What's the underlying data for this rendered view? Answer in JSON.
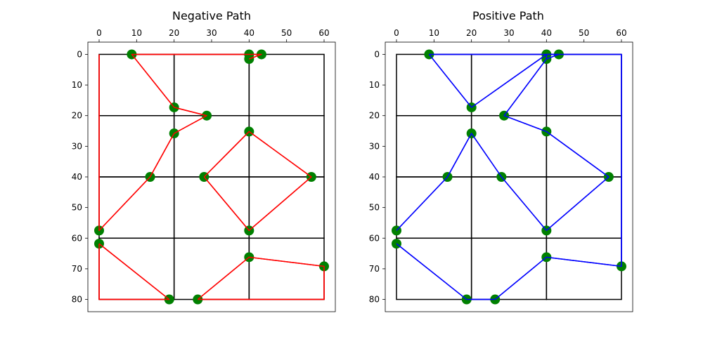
{
  "chart_data": [
    {
      "type": "line",
      "title": "Negative Path",
      "xlabel": "",
      "ylabel": "",
      "xlim": [
        -3,
        63
      ],
      "ylim": [
        84,
        -4
      ],
      "y_inverted": true,
      "x_axis_position": "top",
      "xticks": [
        0,
        10,
        20,
        30,
        40,
        50,
        60
      ],
      "yticks": [
        0,
        10,
        20,
        30,
        40,
        50,
        60,
        70,
        80
      ],
      "path_color": "#ff0000",
      "marker_color": "#008000",
      "grid_color": "#000000",
      "grid_rects": [
        {
          "x0": 0,
          "y0": 0,
          "x1": 20,
          "y1": 20
        },
        {
          "x0": 20,
          "y0": 0,
          "x1": 40,
          "y1": 20
        },
        {
          "x0": 40,
          "y0": 0,
          "x1": 60,
          "y1": 20
        },
        {
          "x0": 0,
          "y0": 20,
          "x1": 20,
          "y1": 40
        },
        {
          "x0": 20,
          "y0": 20,
          "x1": 40,
          "y1": 40
        },
        {
          "x0": 40,
          "y0": 20,
          "x1": 60,
          "y1": 40
        },
        {
          "x0": 0,
          "y0": 40,
          "x1": 20,
          "y1": 60
        },
        {
          "x0": 20,
          "y0": 40,
          "x1": 40,
          "y1": 60
        },
        {
          "x0": 40,
          "y0": 40,
          "x1": 60,
          "y1": 60
        },
        {
          "x0": 0,
          "y0": 60,
          "x1": 20,
          "y1": 80
        },
        {
          "x0": 20,
          "y0": 60,
          "x1": 40,
          "y1": 80
        },
        {
          "x0": 40,
          "y0": 60,
          "x1": 60,
          "y1": 80
        }
      ],
      "points": [
        {
          "x": 8.7,
          "y": 0
        },
        {
          "x": 40,
          "y": 0
        },
        {
          "x": 43.3,
          "y": 0
        },
        {
          "x": 40,
          "y": 1.5
        },
        {
          "x": 20,
          "y": 17.3
        },
        {
          "x": 28.7,
          "y": 20
        },
        {
          "x": 20,
          "y": 25.8
        },
        {
          "x": 40,
          "y": 25.2
        },
        {
          "x": 13.6,
          "y": 40
        },
        {
          "x": 28,
          "y": 40
        },
        {
          "x": 56.6,
          "y": 40
        },
        {
          "x": 0,
          "y": 57.5
        },
        {
          "x": 40,
          "y": 57.5
        },
        {
          "x": 0,
          "y": 61.8
        },
        {
          "x": 40,
          "y": 66.2
        },
        {
          "x": 60,
          "y": 69.2
        },
        {
          "x": 18.7,
          "y": 80
        },
        {
          "x": 26.3,
          "y": 80
        }
      ],
      "path": [
        {
          "x": 40,
          "y": 0
        },
        {
          "x": 8.7,
          "y": 0
        },
        {
          "x": 20,
          "y": 17.3
        },
        {
          "x": 28.7,
          "y": 20
        },
        {
          "x": 20,
          "y": 25.8
        },
        {
          "x": 13.6,
          "y": 40
        },
        {
          "x": 0,
          "y": 57.5
        },
        {
          "x": 0,
          "y": 0
        }
      ],
      "path2": [
        {
          "x": 0,
          "y": 61.8
        },
        {
          "x": 0,
          "y": 80
        },
        {
          "x": 18.7,
          "y": 80
        },
        {
          "x": 0,
          "y": 61.8
        }
      ],
      "path3": [
        {
          "x": 26.3,
          "y": 80
        },
        {
          "x": 60,
          "y": 80
        },
        {
          "x": 60,
          "y": 69.2
        },
        {
          "x": 40,
          "y": 66.2
        },
        {
          "x": 26.3,
          "y": 80
        }
      ],
      "path4": [
        {
          "x": 28,
          "y": 40
        },
        {
          "x": 40,
          "y": 25.2
        },
        {
          "x": 56.6,
          "y": 40
        },
        {
          "x": 40,
          "y": 57.5
        },
        {
          "x": 28,
          "y": 40
        }
      ],
      "path5": [
        {
          "x": 40,
          "y": 1.5
        },
        {
          "x": 43.3,
          "y": 0
        },
        {
          "x": 40,
          "y": 0
        }
      ]
    },
    {
      "type": "line",
      "title": "Positive Path",
      "xlabel": "",
      "ylabel": "",
      "xlim": [
        -3,
        63
      ],
      "ylim": [
        84,
        -4
      ],
      "y_inverted": true,
      "x_axis_position": "top",
      "xticks": [
        0,
        10,
        20,
        30,
        40,
        50,
        60
      ],
      "yticks": [
        0,
        10,
        20,
        30,
        40,
        50,
        60,
        70,
        80
      ],
      "path_color": "#0000ff",
      "marker_color": "#008000",
      "grid_color": "#000000",
      "grid_rects": [
        {
          "x0": 0,
          "y0": 0,
          "x1": 20,
          "y1": 20
        },
        {
          "x0": 20,
          "y0": 0,
          "x1": 40,
          "y1": 20
        },
        {
          "x0": 40,
          "y0": 0,
          "x1": 60,
          "y1": 20
        },
        {
          "x0": 0,
          "y0": 20,
          "x1": 20,
          "y1": 40
        },
        {
          "x0": 20,
          "y0": 20,
          "x1": 40,
          "y1": 40
        },
        {
          "x0": 40,
          "y0": 20,
          "x1": 60,
          "y1": 40
        },
        {
          "x0": 0,
          "y0": 40,
          "x1": 20,
          "y1": 60
        },
        {
          "x0": 20,
          "y0": 40,
          "x1": 40,
          "y1": 60
        },
        {
          "x0": 40,
          "y0": 40,
          "x1": 60,
          "y1": 60
        },
        {
          "x0": 0,
          "y0": 60,
          "x1": 20,
          "y1": 80
        },
        {
          "x0": 20,
          "y0": 60,
          "x1": 40,
          "y1": 80
        },
        {
          "x0": 40,
          "y0": 60,
          "x1": 60,
          "y1": 80
        }
      ],
      "points": [
        {
          "x": 8.7,
          "y": 0
        },
        {
          "x": 40,
          "y": 0
        },
        {
          "x": 43.3,
          "y": 0
        },
        {
          "x": 40,
          "y": 1.5
        },
        {
          "x": 20,
          "y": 17.3
        },
        {
          "x": 28.7,
          "y": 20
        },
        {
          "x": 20,
          "y": 25.8
        },
        {
          "x": 40,
          "y": 25.2
        },
        {
          "x": 13.6,
          "y": 40
        },
        {
          "x": 28,
          "y": 40
        },
        {
          "x": 56.6,
          "y": 40
        },
        {
          "x": 0,
          "y": 57.5
        },
        {
          "x": 40,
          "y": 57.5
        },
        {
          "x": 0,
          "y": 61.8
        },
        {
          "x": 40,
          "y": 66.2
        },
        {
          "x": 60,
          "y": 69.2
        },
        {
          "x": 18.7,
          "y": 80
        },
        {
          "x": 26.3,
          "y": 80
        }
      ],
      "path": [
        {
          "x": 0,
          "y": 57.5
        },
        {
          "x": 13.6,
          "y": 40
        },
        {
          "x": 20,
          "y": 25.8
        },
        {
          "x": 28,
          "y": 40
        },
        {
          "x": 40,
          "y": 57.5
        },
        {
          "x": 40,
          "y": 57.5
        }
      ],
      "path2": [
        {
          "x": 8.7,
          "y": 0
        },
        {
          "x": 60,
          "y": 0
        },
        {
          "x": 60,
          "y": 69.2
        },
        {
          "x": 40,
          "y": 66.2
        },
        {
          "x": 26.3,
          "y": 80
        },
        {
          "x": 18.7,
          "y": 80
        },
        {
          "x": 0,
          "y": 61.8
        }
      ],
      "path3": [
        {
          "x": 8.7,
          "y": 0
        },
        {
          "x": 20,
          "y": 17.3
        },
        {
          "x": 40,
          "y": 0
        },
        {
          "x": 40,
          "y": 1.5
        },
        {
          "x": 28.7,
          "y": 20
        },
        {
          "x": 40,
          "y": 25.2
        },
        {
          "x": 56.6,
          "y": 40
        },
        {
          "x": 40,
          "y": 57.5
        }
      ],
      "path4": [
        {
          "x": 40,
          "y": 1.5
        },
        {
          "x": 43.3,
          "y": 0
        },
        {
          "x": 40,
          "y": 0
        }
      ],
      "path5": []
    }
  ]
}
